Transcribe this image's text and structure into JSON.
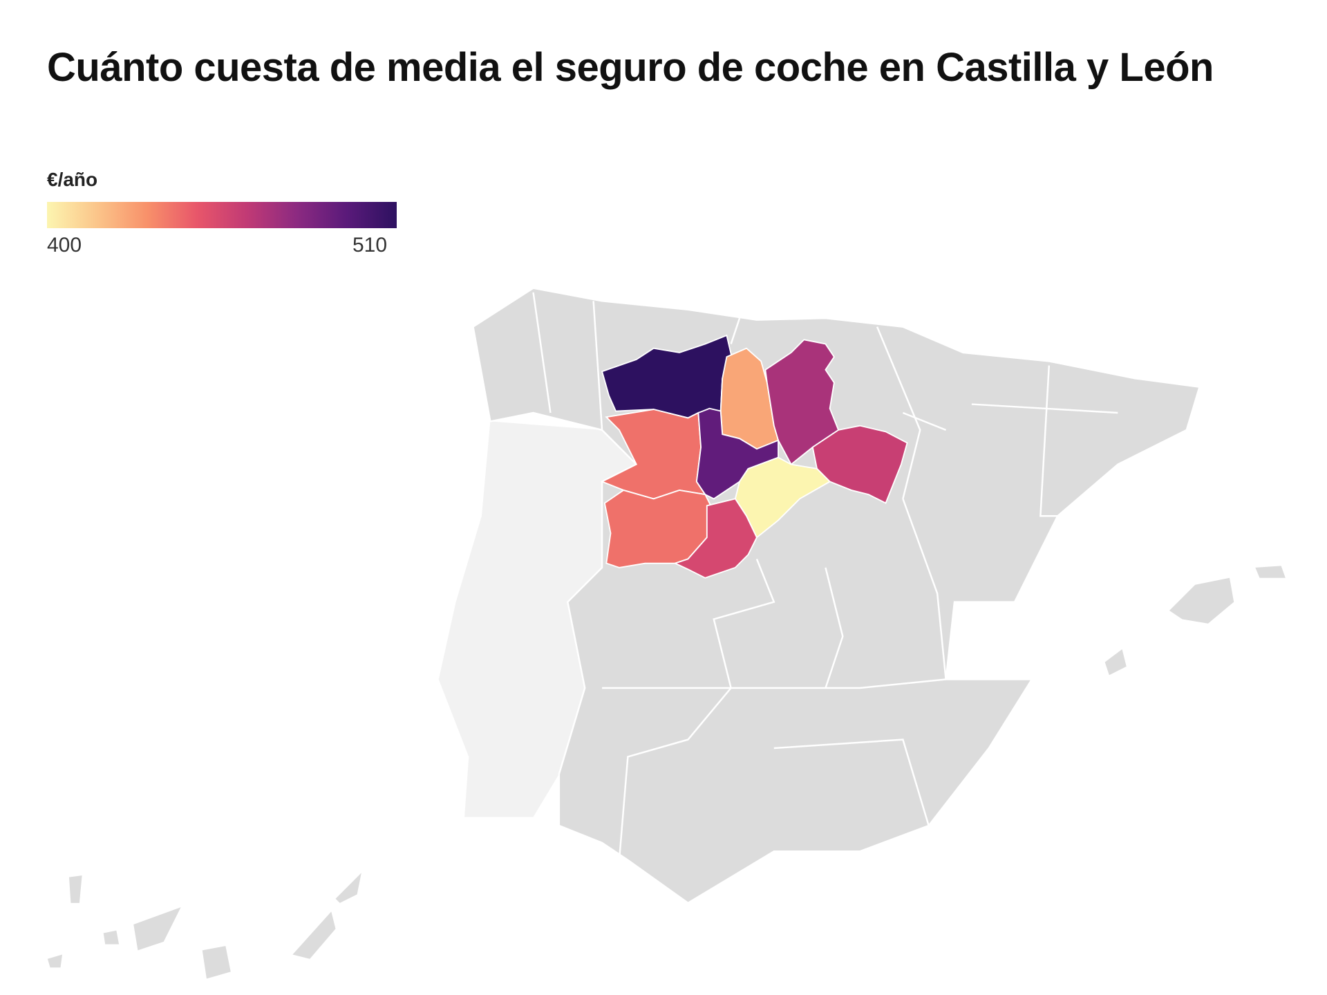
{
  "title": "Cuánto cuesta de media el seguro de coche en Castilla y León",
  "legend": {
    "label": "€/año",
    "min": "400",
    "max": "510",
    "colors": [
      "#fcf5b0",
      "#fbc58a",
      "#f8916a",
      "#e8566a",
      "#c13a75",
      "#8c2a81",
      "#5a1a7a",
      "#2d1160"
    ]
  },
  "map": {
    "base_color": "#dcdcdc",
    "neighbor_color": "#f2f2f2",
    "regions": [
      {
        "id": "leon",
        "value": 510
      },
      {
        "id": "palencia",
        "value": 425
      },
      {
        "id": "burgos",
        "value": 470
      },
      {
        "id": "zamora",
        "value": 440
      },
      {
        "id": "valladolid",
        "value": 492
      },
      {
        "id": "soria",
        "value": 460
      },
      {
        "id": "segovia",
        "value": 400
      },
      {
        "id": "salamanca",
        "value": 440
      },
      {
        "id": "avila",
        "value": 455
      }
    ]
  }
}
